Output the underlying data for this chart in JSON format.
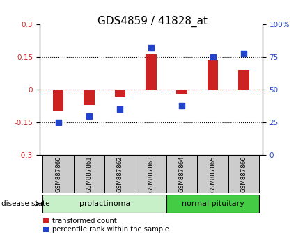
{
  "title": "GDS4859 / 41828_at",
  "samples": [
    "GSM887860",
    "GSM887861",
    "GSM887862",
    "GSM887863",
    "GSM887864",
    "GSM887865",
    "GSM887866"
  ],
  "transformed_count": [
    -0.1,
    -0.07,
    -0.03,
    0.165,
    -0.02,
    0.135,
    0.09
  ],
  "percentile_rank": [
    25,
    30,
    35,
    82,
    38,
    75,
    78
  ],
  "groups": [
    {
      "label": "prolactinoma",
      "start": 0,
      "end": 4,
      "color": "#c8f0c8"
    },
    {
      "label": "normal pituitary",
      "start": 4,
      "end": 7,
      "color": "#44cc44"
    }
  ],
  "ylim_left": [
    -0.3,
    0.3
  ],
  "ylim_right": [
    0,
    100
  ],
  "yticks_left": [
    -0.3,
    -0.15,
    0,
    0.15,
    0.3
  ],
  "yticks_right": [
    0,
    25,
    50,
    75,
    100
  ],
  "ytick_labels_right": [
    "0",
    "25",
    "50",
    "75",
    "100%"
  ],
  "hlines_dotted": [
    -0.15,
    0.15
  ],
  "hline_zero_color": "#cc2222",
  "bar_color": "#cc2222",
  "dot_color": "#2244cc",
  "title_fontsize": 11,
  "tick_color_left": "#cc2222",
  "tick_color_right": "#2244cc",
  "label_transformed": "transformed count",
  "label_percentile": "percentile rank within the sample",
  "disease_state_label": "disease state",
  "sample_box_color": "#cccccc",
  "split_index": 3.5
}
